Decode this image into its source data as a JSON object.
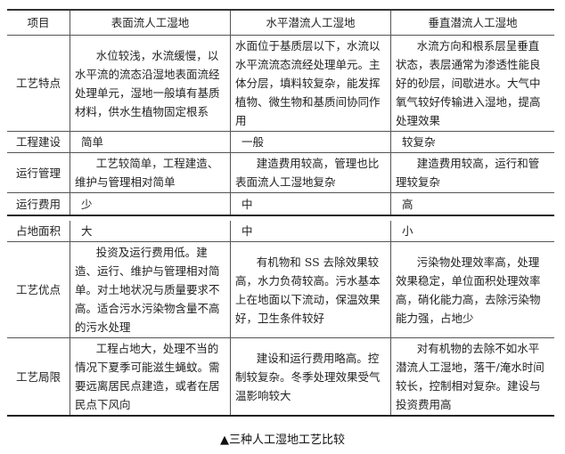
{
  "headers": [
    "项目",
    "表面流人工湿地",
    "水平潜流人工湿地",
    "垂直潜流人工湿地"
  ],
  "rows": [
    {
      "item": "工艺特点",
      "surface": "水位较浅，水流缓慢，以水平流的流态沿湿地表面流经处理单元，湿地一般填有基质材料，供水生植物固定根系",
      "horizontal": "水面位于基质层以下，水流以水平流流态流经处理单元。主体分层，填料较复杂，能发挥植物、微生物和基质间协同作用",
      "vertical": "水流方向和根系层呈垂直状态，表层通常为渗透性能良好的砂层，间歇进水。大气中氧气较好传输进入湿地，提高处理效果"
    },
    {
      "item": "工程建设",
      "surface": "简单",
      "horizontal": "一般",
      "vertical": "较复杂"
    },
    {
      "item": "运行管理",
      "surface": "工艺较简单，工程建造、维护与管理相对简单",
      "horizontal": "建造费用较高，管理也比表面流人工湿地复杂",
      "vertical": "建造费用较高，运行和管理较复杂"
    },
    {
      "item": "运行费用",
      "surface": "少",
      "horizontal": "中",
      "vertical": "高"
    },
    {
      "item": "占地面积",
      "surface": "大",
      "horizontal": "中",
      "vertical": "小"
    },
    {
      "item": "工艺优点",
      "surface": "投资及运行费用低。建造、运行、维护与管理相对简单。对土地状况与质量要求不高。适合污水污染物含量不高的污水处理",
      "horizontal": "有机物和 SS 去除效果较高，水力负荷较高。污水基本上在地面以下流动，保温效果好，卫生条件较好",
      "vertical": "污染物处理效率高，处理效果稳定，单位面积处理效率高，硝化能力高，去除污染物能力强，占地少"
    },
    {
      "item": "工艺局限",
      "surface": "工程占地大，处理不当的情况下夏季可能滋生蝇蚊。需要远离居民点建造，或者在居民点下风向",
      "horizontal": "建设和运行费用略高。控制较复杂。冬季处理效果受气温影响较大",
      "vertical": "对有机物的去除不如水平潜流人工湿地，落干/淹水时间较长，控制相对复杂。建设与投资费用高"
    }
  ],
  "caption": "▲三种人工湿地工艺比较"
}
